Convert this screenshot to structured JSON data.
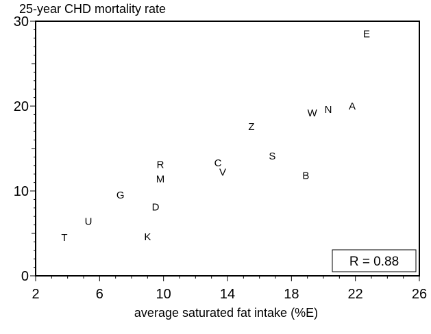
{
  "chart_data": {
    "type": "scatter",
    "title": "25-year CHD mortality rate",
    "xlabel": "average saturated fat intake (%E)",
    "ylabel": "",
    "xlim": [
      2,
      26
    ],
    "ylim": [
      0,
      30
    ],
    "xticks": [
      2,
      6,
      10,
      14,
      18,
      22,
      26
    ],
    "yticks": [
      0,
      10,
      20,
      30
    ],
    "points": [
      {
        "label": "E",
        "x": 22.7,
        "y": 28.5
      },
      {
        "label": "A",
        "x": 21.8,
        "y": 20.0
      },
      {
        "label": "N",
        "x": 20.3,
        "y": 19.6
      },
      {
        "label": "W",
        "x": 19.3,
        "y": 19.2
      },
      {
        "label": "Z",
        "x": 15.5,
        "y": 17.6
      },
      {
        "label": "S",
        "x": 16.8,
        "y": 14.1
      },
      {
        "label": "B",
        "x": 18.9,
        "y": 11.8
      },
      {
        "label": "C",
        "x": 13.4,
        "y": 13.3
      },
      {
        "label": "V",
        "x": 13.7,
        "y": 12.2
      },
      {
        "label": "R",
        "x": 9.8,
        "y": 13.1
      },
      {
        "label": "M",
        "x": 9.8,
        "y": 11.4
      },
      {
        "label": "D",
        "x": 9.5,
        "y": 8.1
      },
      {
        "label": "G",
        "x": 7.3,
        "y": 9.5
      },
      {
        "label": "U",
        "x": 5.3,
        "y": 6.4
      },
      {
        "label": "T",
        "x": 3.8,
        "y": 4.5
      },
      {
        "label": "K",
        "x": 9.0,
        "y": 4.6
      }
    ],
    "annotation": "R = 0.88",
    "grid": false,
    "legend": "none"
  }
}
